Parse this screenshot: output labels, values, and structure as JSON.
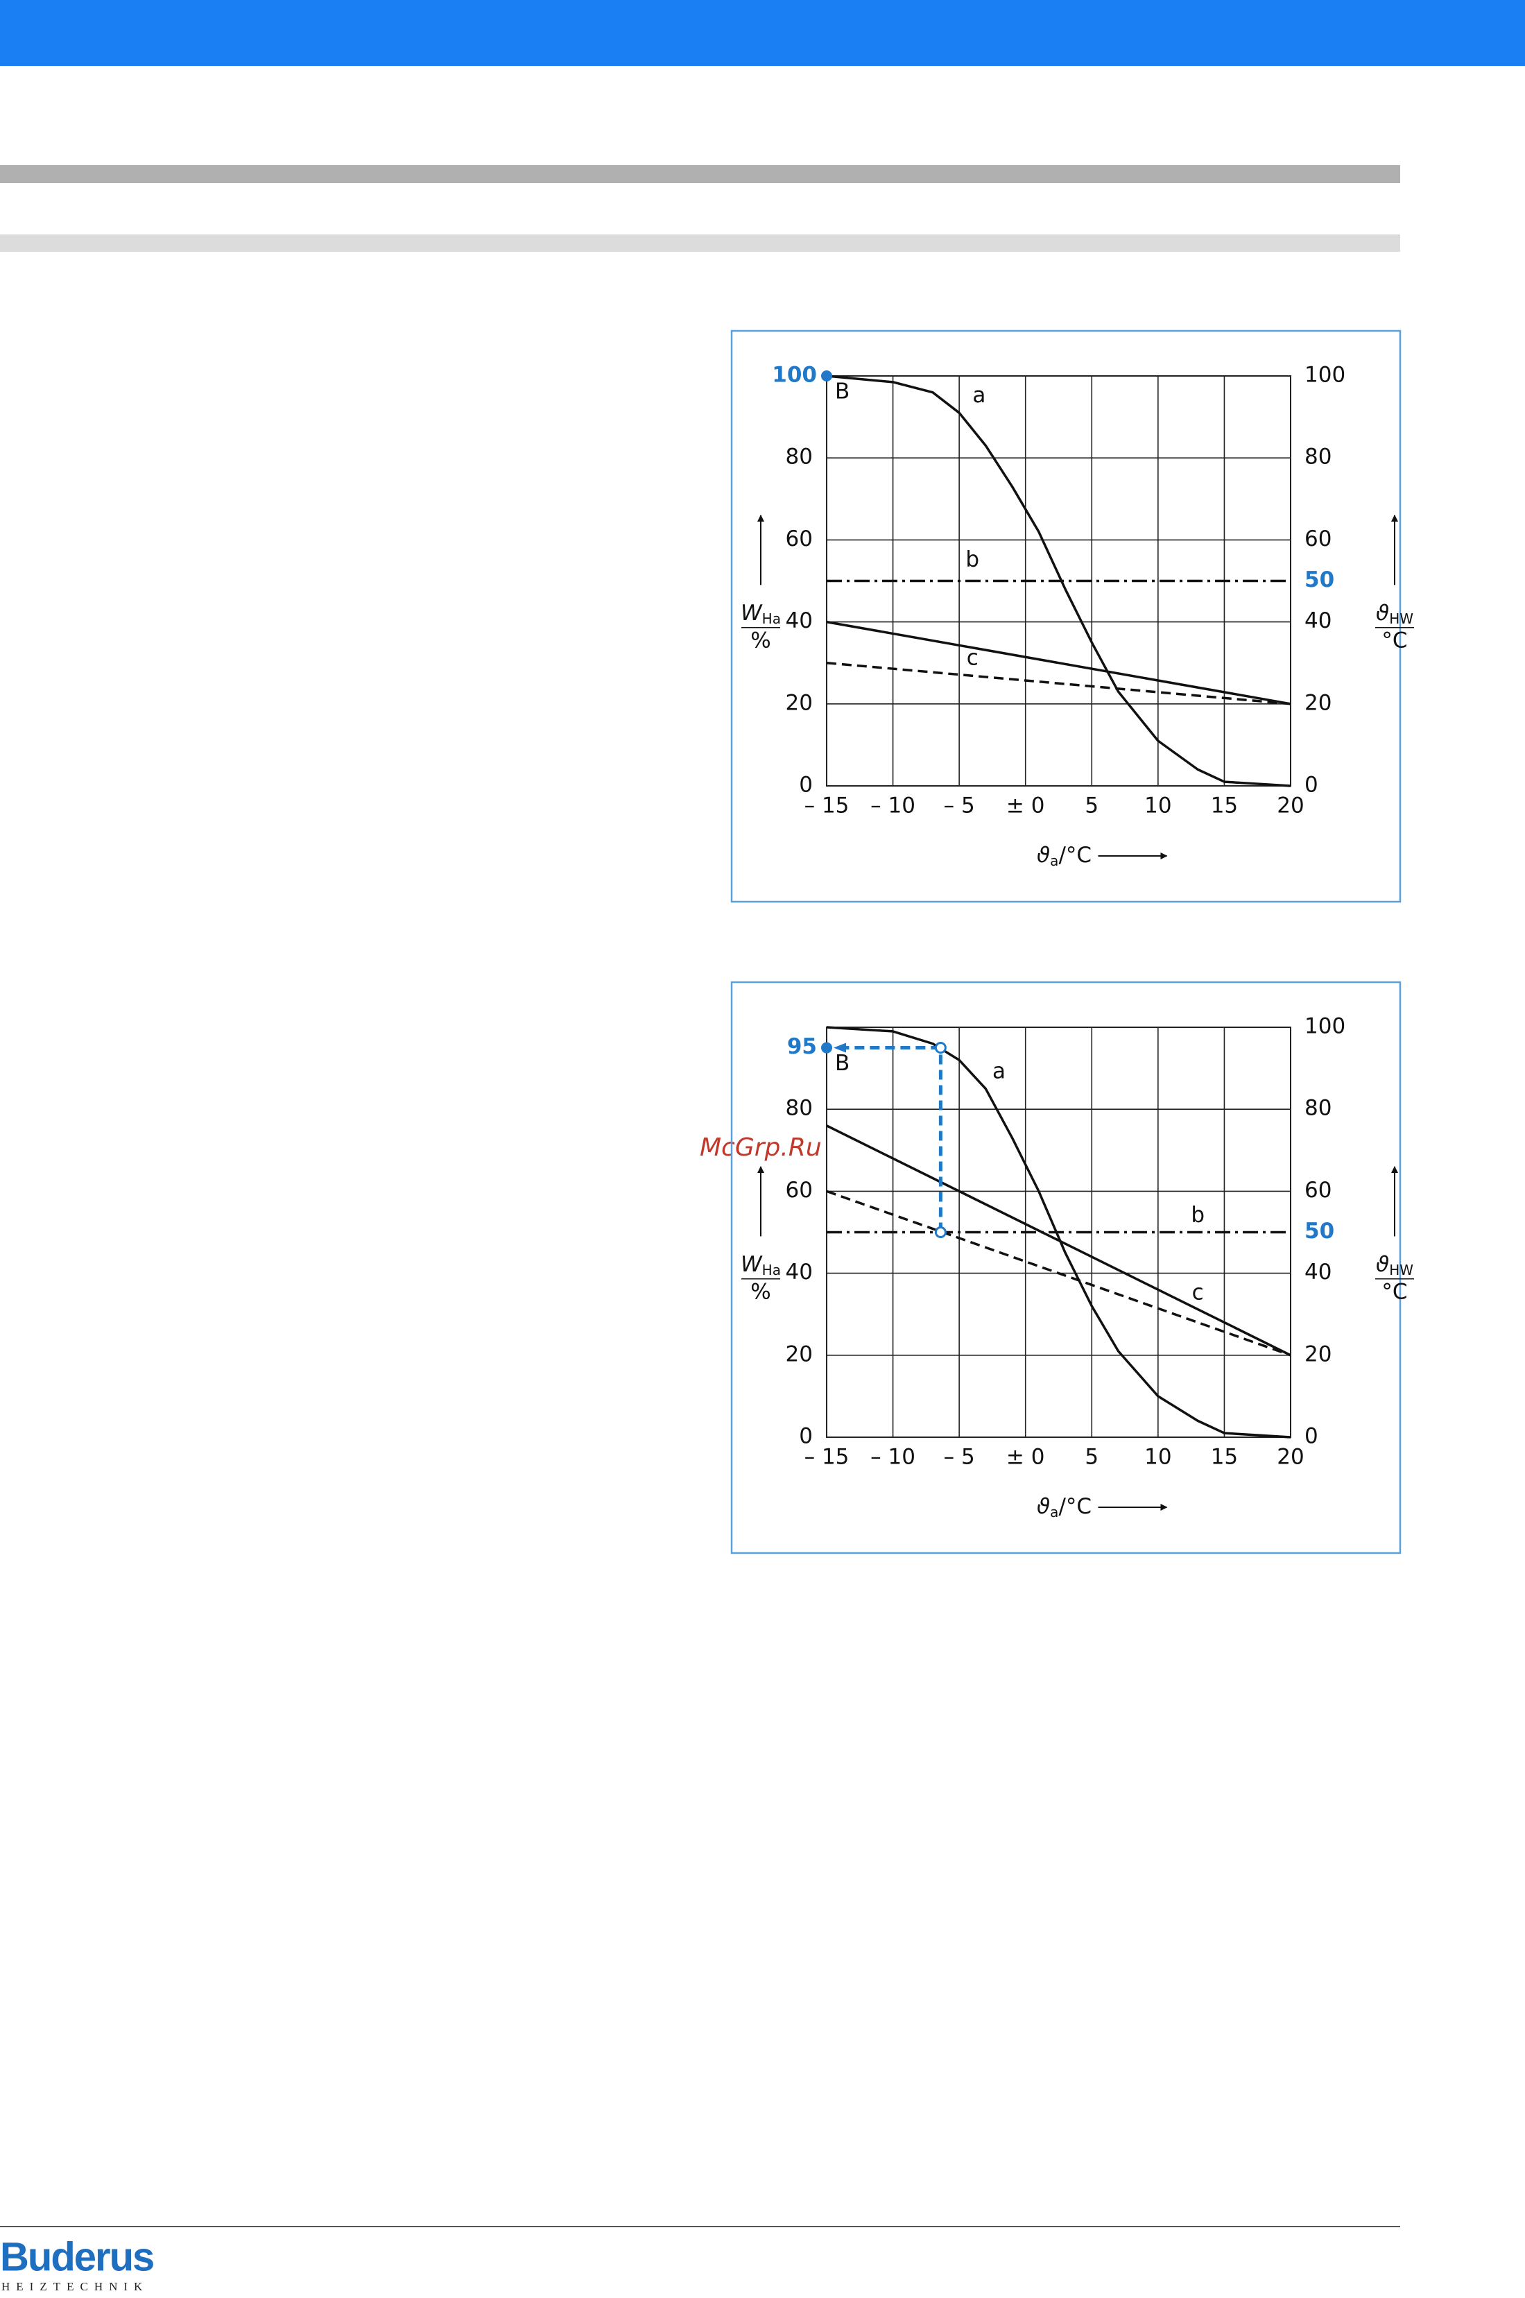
{
  "chart_data": [
    {
      "type": "line",
      "xlim": [
        -15,
        20
      ],
      "xticks": [
        {
          "value": -15,
          "label": "– 15"
        },
        {
          "value": -10,
          "label": "– 10"
        },
        {
          "value": -5,
          "label": "– 5"
        },
        {
          "value": 0,
          "label": "± 0"
        },
        5,
        10,
        15,
        20
      ],
      "ylim": [
        0,
        100
      ],
      "yticks": [
        0,
        20,
        40,
        60,
        80
      ],
      "y2lim": [
        0,
        100
      ],
      "y2ticks": [
        0,
        20,
        40,
        60,
        80,
        100
      ],
      "grid": true,
      "x_label": {
        "symbol": "ϑ",
        "subscript": "a",
        "unit": "/°C"
      },
      "y_label": {
        "symbol": "W",
        "subscript": "Ha",
        "unit": "%"
      },
      "y2_label": {
        "symbol": "ϑ",
        "subscript": "HW",
        "unit": "°C"
      },
      "series": [
        {
          "name": "a",
          "color": "#111111",
          "style": "solid",
          "x": [
            -15,
            -10,
            -7,
            -5,
            -3,
            -1,
            1,
            3,
            5,
            7,
            10,
            13,
            15,
            20
          ],
          "values": [
            100,
            98.5,
            96,
            91,
            83,
            73,
            62,
            48,
            35,
            23,
            11,
            4,
            1,
            0
          ]
        },
        {
          "name": "b",
          "color": "#111111",
          "style": "dashdot",
          "axis": "y2",
          "x": [
            -15,
            20
          ],
          "values": [
            50,
            50
          ]
        },
        {
          "name": "c",
          "color": "#111111",
          "style": "dashed",
          "axis": "y2",
          "x": [
            -15,
            20
          ],
          "values": [
            30,
            20
          ]
        },
        {
          "color": "#111111",
          "style": "solid",
          "axis": "y2",
          "x": [
            -15,
            20
          ],
          "values": [
            40,
            20
          ]
        }
      ],
      "start_point": {
        "label": "B",
        "value": 100,
        "color": "#1f78c8"
      },
      "y2_marker": {
        "value": 50,
        "color": "#1f78c8"
      }
    },
    {
      "type": "line",
      "xlim": [
        -15,
        20
      ],
      "xticks": [
        {
          "value": -15,
          "label": "– 15"
        },
        {
          "value": -10,
          "label": "– 10"
        },
        {
          "value": -5,
          "label": "– 5"
        },
        {
          "value": 0,
          "label": "± 0"
        },
        5,
        10,
        15,
        20
      ],
      "ylim": [
        0,
        100
      ],
      "yticks": [
        0,
        20,
        40,
        60,
        80
      ],
      "y2lim": [
        0,
        100
      ],
      "y2ticks": [
        0,
        20,
        40,
        60,
        80,
        100
      ],
      "grid": true,
      "x_label": {
        "symbol": "ϑ",
        "subscript": "a",
        "unit": "/°C"
      },
      "y_label": {
        "symbol": "W",
        "subscript": "Ha",
        "unit": "%"
      },
      "y2_label": {
        "symbol": "ϑ",
        "subscript": "HW",
        "unit": "°C"
      },
      "series": [
        {
          "name": "a",
          "color": "#111111",
          "style": "solid",
          "x": [
            -15,
            -10,
            -7,
            -5,
            -3,
            -1,
            1,
            3,
            5,
            7,
            10,
            13,
            15,
            20
          ],
          "values": [
            100,
            99,
            96,
            92,
            85,
            73,
            60,
            45,
            32,
            21,
            10,
            4,
            1,
            0
          ]
        },
        {
          "name": "b",
          "color": "#111111",
          "style": "dashdot",
          "axis": "y2",
          "x": [
            -15,
            20
          ],
          "values": [
            50,
            50
          ]
        },
        {
          "name": "c",
          "color": "#111111",
          "style": "dashed",
          "axis": "y2",
          "x": [
            -15,
            20
          ],
          "values": [
            60,
            20
          ]
        },
        {
          "color": "#111111",
          "style": "solid",
          "axis": "y2",
          "x": [
            -15,
            20
          ],
          "values": [
            76,
            20
          ]
        }
      ],
      "start_point": {
        "label": "B",
        "value": 95,
        "color": "#1f78c8"
      },
      "y2_marker": {
        "value": 50,
        "color": "#1f78c8"
      },
      "guide": {
        "x": -6.4,
        "from": 50,
        "to": 95,
        "color": "#1f78c8"
      }
    }
  ],
  "watermark": "McGrp.Ru",
  "footer": {
    "logo": "Buderus",
    "tagline": "HEIZTECHNIK"
  }
}
